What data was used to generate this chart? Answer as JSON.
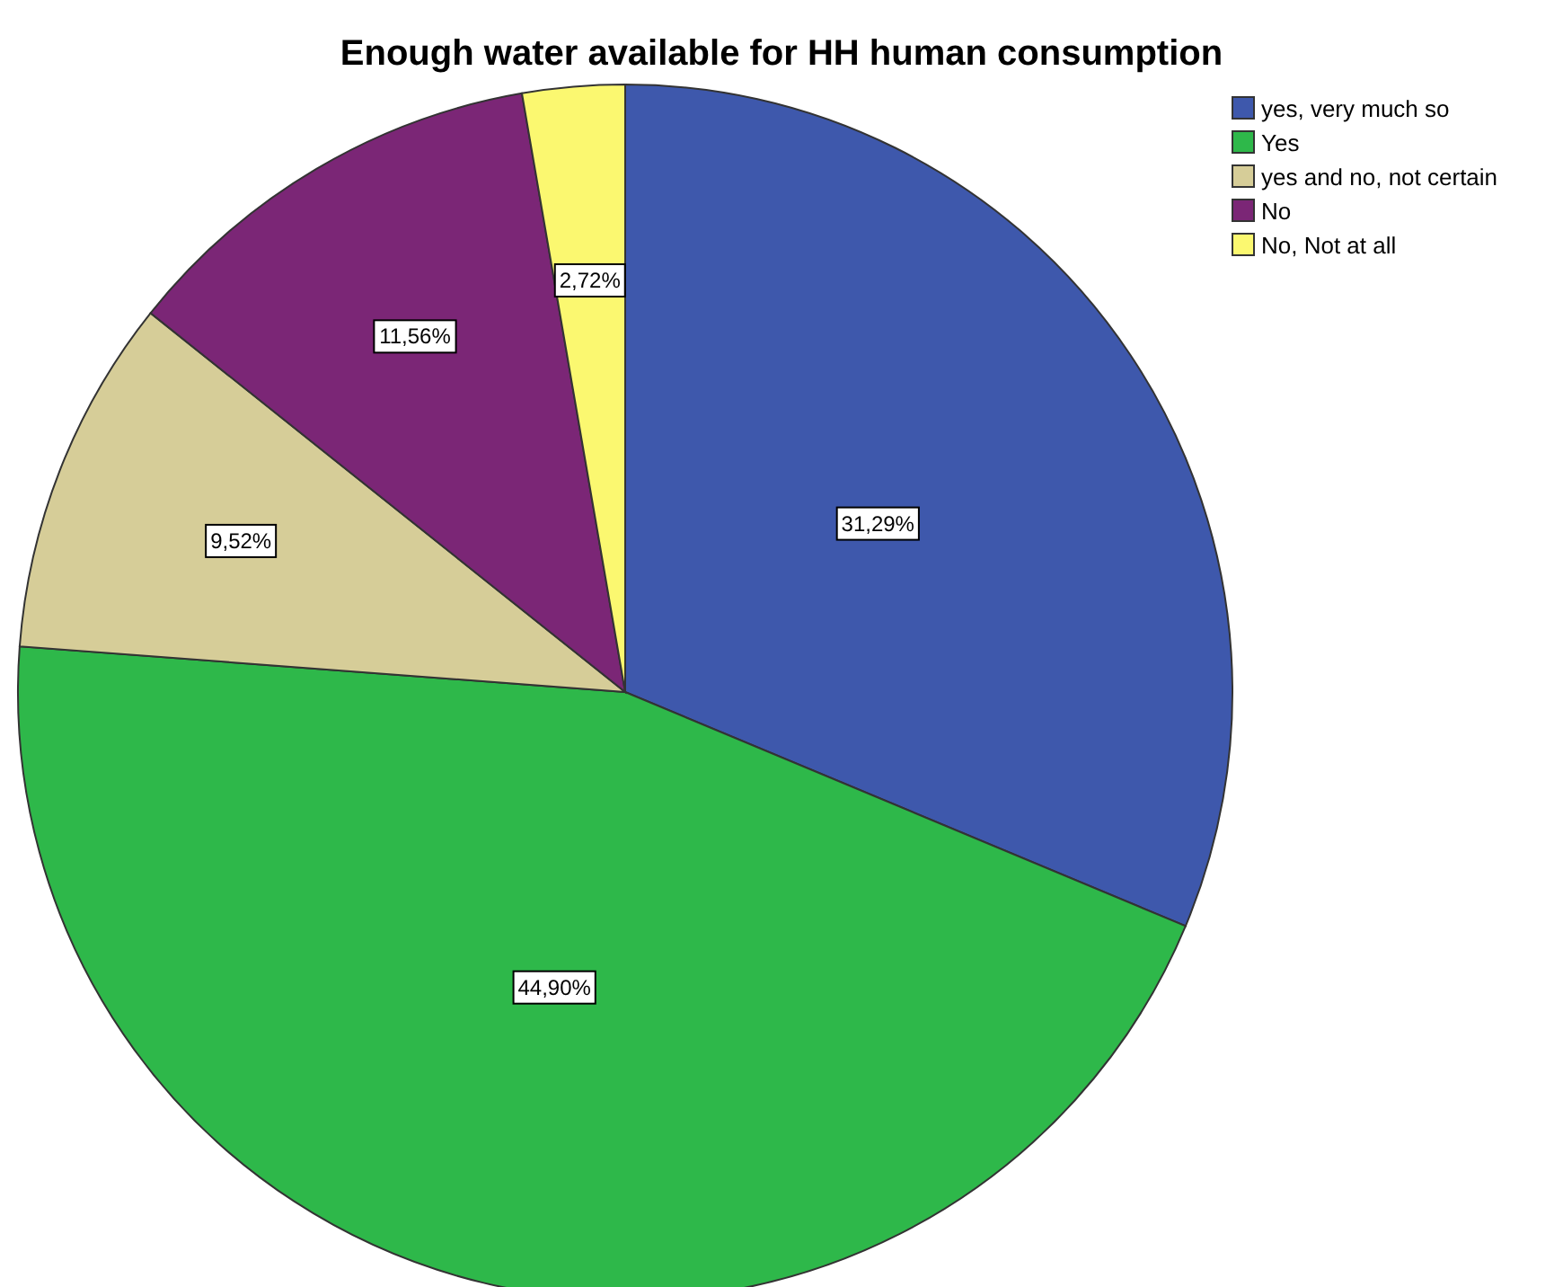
{
  "chart_data": {
    "type": "pie",
    "title": "Enough water available for HH human consumption",
    "categories": [
      "yes, very much so",
      "Yes",
      "yes and no, not certain",
      "No",
      "No, Not at all"
    ],
    "values": [
      31.29,
      44.9,
      9.52,
      11.56,
      2.72
    ],
    "value_labels": [
      "31,29%",
      "44,90%",
      "9,52%",
      "11,56%",
      "2,72%"
    ],
    "colors": [
      "#3e58ac",
      "#2eb84a",
      "#d6cd98",
      "#7b2676",
      "#fbf870"
    ],
    "legend": "top right"
  }
}
